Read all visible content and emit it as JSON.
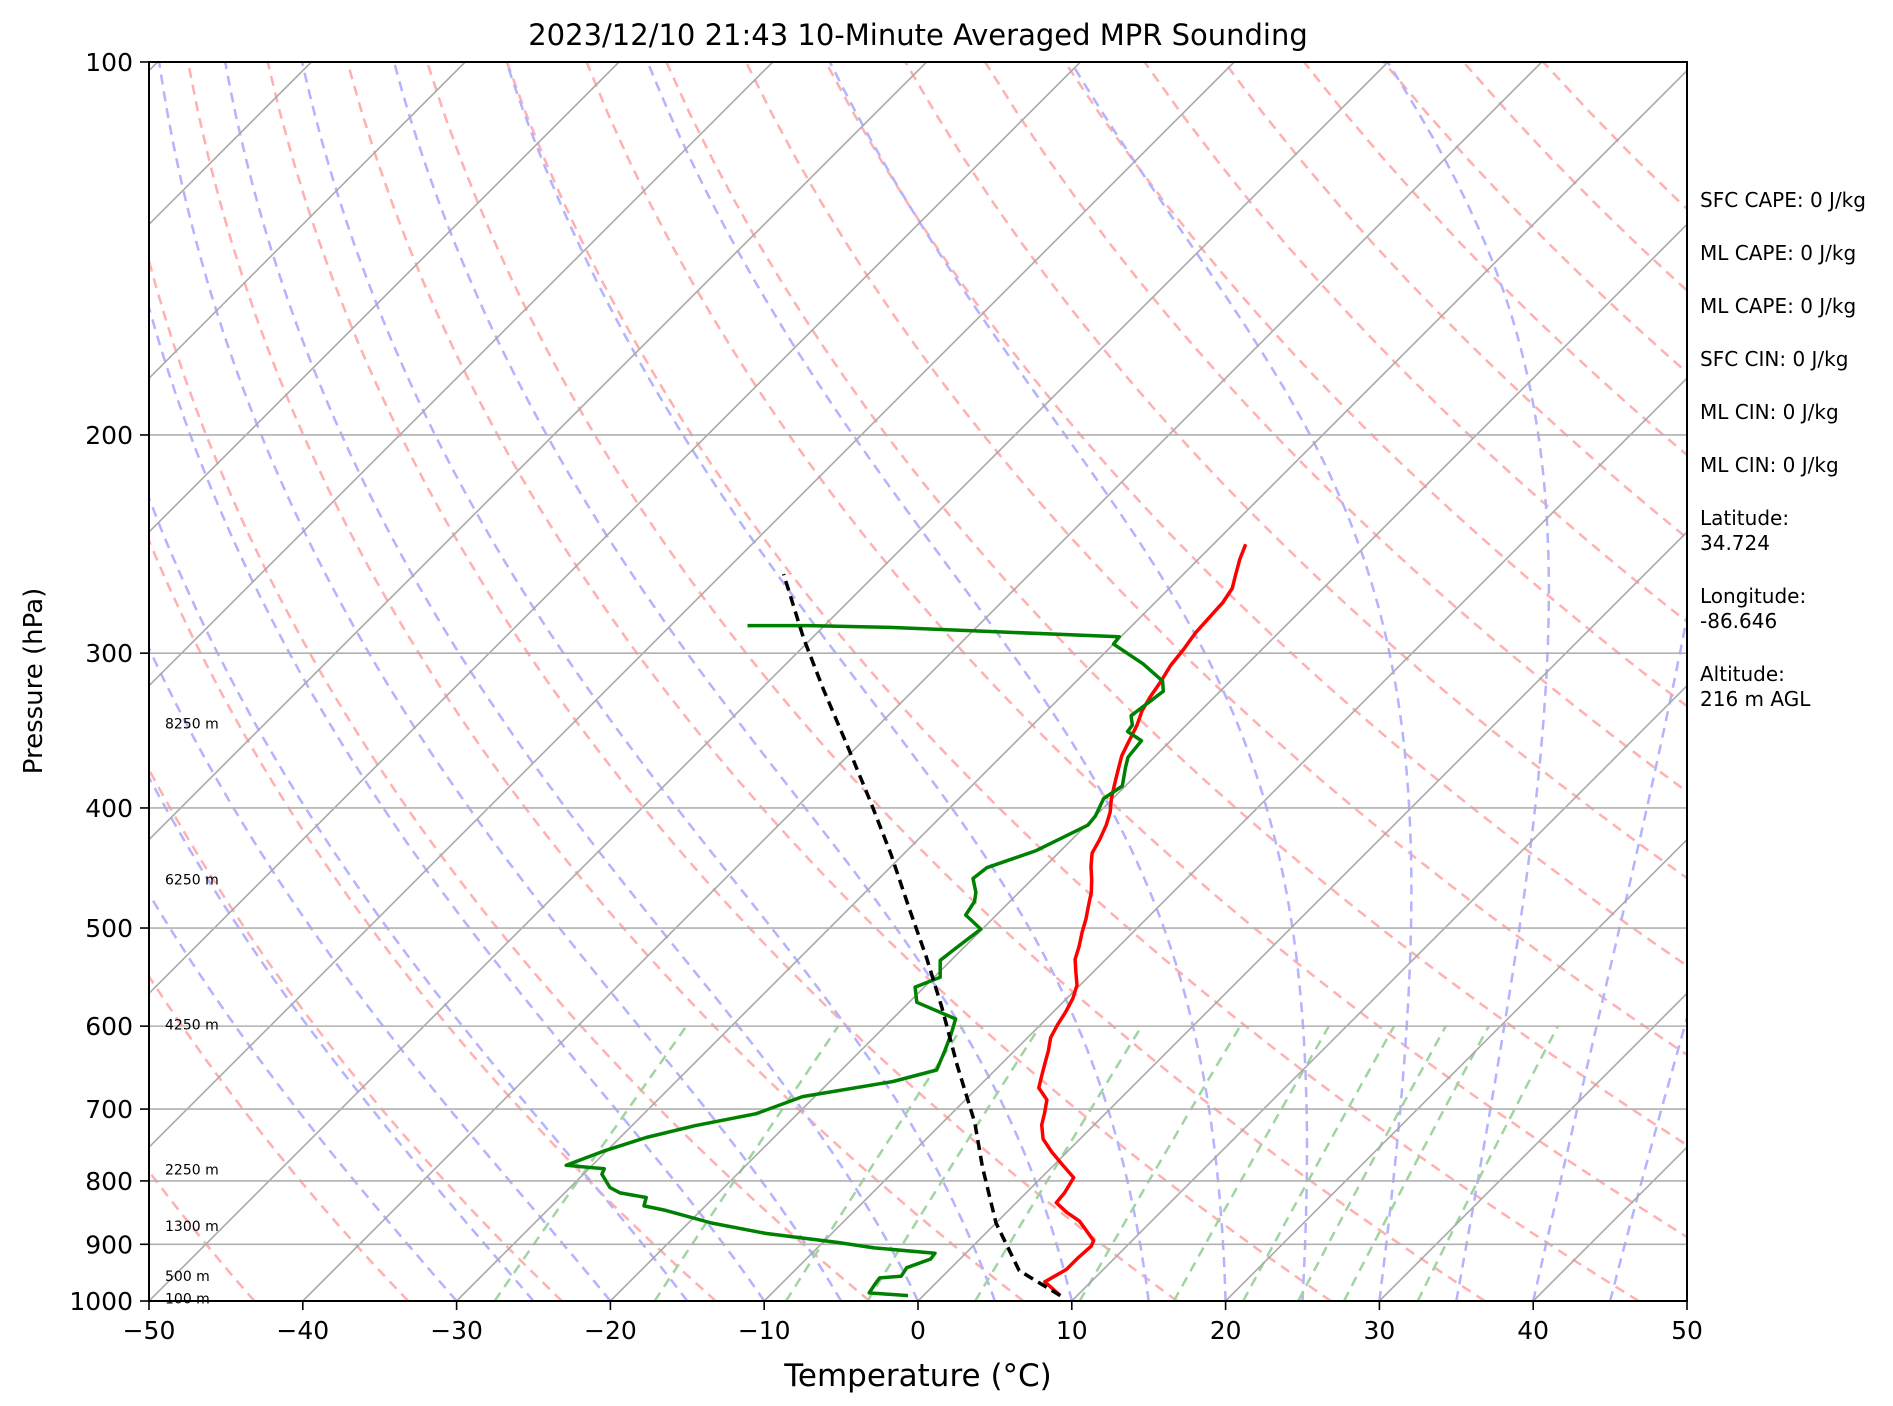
{
  "chart_data": {
    "type": "line",
    "title": "2023/12/10 21:43 10-Minute Averaged MPR Sounding",
    "xlabel": "Temperature (°C)",
    "ylabel": "Pressure (hPa)",
    "xlim": [
      -50,
      50
    ],
    "ylim": [
      1000,
      100
    ],
    "y_scale": "log",
    "x_ticks": [
      -50,
      -40,
      -30,
      -20,
      -10,
      0,
      10,
      20,
      30,
      40,
      50
    ],
    "x_tick_labels": [
      "−50",
      "−40",
      "−30",
      "−20",
      "−10",
      "0",
      "10",
      "20",
      "30",
      "40",
      "50"
    ],
    "y_ticks": [
      1000,
      900,
      800,
      700,
      600,
      500,
      400,
      300,
      200,
      100
    ],
    "y_tick_labels": [
      "1000",
      "900",
      "800",
      "700",
      "600",
      "500",
      "400",
      "300",
      "200",
      "100"
    ],
    "grid": true,
    "series": [
      {
        "kind": "temperature",
        "color": "#ff0000",
        "points": [
          [
            8.9,
            990
          ],
          [
            7.0,
            965
          ],
          [
            7.6,
            943
          ],
          [
            7.6,
            923
          ],
          [
            7.7,
            903
          ],
          [
            7.5,
            894
          ],
          [
            6.0,
            872
          ],
          [
            5.3,
            862
          ],
          [
            3.9,
            848
          ],
          [
            2.6,
            833
          ],
          [
            2.5,
            818
          ],
          [
            2.1,
            795
          ],
          [
            0.5,
            776
          ],
          [
            -1.0,
            758
          ],
          [
            -2.4,
            740
          ],
          [
            -3.4,
            721
          ],
          [
            -4.0,
            705
          ],
          [
            -4.7,
            688
          ],
          [
            -6.0,
            673
          ],
          [
            -6.6,
            658
          ],
          [
            -7.2,
            643
          ],
          [
            -7.8,
            628
          ],
          [
            -8.5,
            613
          ],
          [
            -8.9,
            598
          ],
          [
            -9.2,
            584
          ],
          [
            -9.6,
            570
          ],
          [
            -10.2,
            556
          ],
          [
            -11.1,
            543
          ],
          [
            -12.0,
            530
          ],
          [
            -12.6,
            517
          ],
          [
            -13.3,
            504
          ],
          [
            -13.9,
            492
          ],
          [
            -14.6,
            480
          ],
          [
            -15.3,
            468
          ],
          [
            -16.1,
            457
          ],
          [
            -17.0,
            446
          ],
          [
            -17.8,
            435
          ],
          [
            -18.2,
            424
          ],
          [
            -18.7,
            413
          ],
          [
            -19.3,
            403
          ],
          [
            -20.1,
            393
          ],
          [
            -20.8,
            383
          ],
          [
            -21.5,
            373
          ],
          [
            -22.2,
            363
          ],
          [
            -22.7,
            353
          ],
          [
            -23.2,
            343
          ],
          [
            -23.8,
            334
          ],
          [
            -24.2,
            325
          ],
          [
            -24.5,
            316
          ],
          [
            -24.9,
            307
          ],
          [
            -25.1,
            298
          ],
          [
            -25.4,
            289
          ],
          [
            -25.5,
            281
          ],
          [
            -25.6,
            273
          ],
          [
            -25.9,
            266
          ],
          [
            -26.6,
            259
          ],
          [
            -27.3,
            252
          ],
          [
            -27.9,
            245
          ]
        ]
      },
      {
        "kind": "dewpoint",
        "color": "#008000",
        "points": [
          [
            -1.0,
            990
          ],
          [
            -3.7,
            985
          ],
          [
            -3.9,
            969
          ],
          [
            -4.0,
            958
          ],
          [
            -2.7,
            955
          ],
          [
            -2.9,
            940
          ],
          [
            -1.9,
            925
          ],
          [
            -2.0,
            915
          ],
          [
            -6.3,
            906
          ],
          [
            -9.0,
            897
          ],
          [
            -14.3,
            882
          ],
          [
            -18.5,
            865
          ],
          [
            -22.3,
            845
          ],
          [
            -24.0,
            838
          ],
          [
            -24.4,
            825
          ],
          [
            -26.4,
            818
          ],
          [
            -27.4,
            810
          ],
          [
            -28.8,
            790
          ],
          [
            -29.0,
            782
          ],
          [
            -31.7,
            777
          ],
          [
            -30.2,
            757
          ],
          [
            -28.3,
            738
          ],
          [
            -25.9,
            722
          ],
          [
            -22.7,
            706
          ],
          [
            -20.8,
            684
          ],
          [
            -15.9,
            665
          ],
          [
            -13.8,
            651
          ],
          [
            -14.5,
            629
          ],
          [
            -15.2,
            609
          ],
          [
            -15.9,
            592
          ],
          [
            -19.5,
            574
          ],
          [
            -20.6,
            558
          ],
          [
            -19.6,
            548
          ],
          [
            -20.7,
            531
          ],
          [
            -20.5,
            520
          ],
          [
            -20.1,
            501
          ],
          [
            -22.0,
            488
          ],
          [
            -22.3,
            476
          ],
          [
            -22.8,
            468
          ],
          [
            -23.9,
            456
          ],
          [
            -23.7,
            447
          ],
          [
            -21.6,
            433
          ],
          [
            -19.9,
            413
          ],
          [
            -20.0,
            406
          ],
          [
            -20.6,
            393
          ],
          [
            -20.2,
            384
          ],
          [
            -21.2,
            371
          ],
          [
            -21.7,
            364
          ],
          [
            -21.9,
            353
          ],
          [
            -23.4,
            347
          ],
          [
            -23.5,
            343
          ],
          [
            -24.2,
            337
          ],
          [
            -23.9,
            328
          ],
          [
            -23.7,
            322
          ],
          [
            -24.4,
            316
          ],
          [
            -26.8,
            306
          ],
          [
            -30.0,
            295
          ],
          [
            -30.1,
            291
          ],
          [
            -45.6,
            286
          ],
          [
            -51.0,
            285
          ],
          [
            -55.0,
            285
          ]
        ]
      },
      {
        "kind": "parcel",
        "color": "#000000",
        "points": [
          [
            8.9,
            990
          ],
          [
            4.6,
            945
          ],
          [
            0.0,
            865
          ],
          [
            -4.5,
            780
          ],
          [
            -7.9,
            718
          ],
          [
            -12.8,
            645
          ],
          [
            -17.5,
            580
          ],
          [
            -21.8,
            528
          ],
          [
            -26.3,
            480
          ],
          [
            -30.8,
            436
          ],
          [
            -35.6,
            395
          ],
          [
            -40.6,
            357
          ],
          [
            -45.9,
            321
          ],
          [
            -50.5,
            292
          ],
          [
            -56.0,
            259
          ]
        ]
      }
    ],
    "height_labels": [
      "8250 m",
      "6250 m",
      "4250 m",
      "2250 m",
      "1300 m",
      "500 m",
      "100 m"
    ],
    "height_label_pressures": [
      342,
      457,
      598,
      783,
      870,
      955,
      995
    ],
    "background_lines": {
      "isotherm_color": "#a9a9a9",
      "dry_adiabat_color": "#ffb0b0",
      "moist_adiabat_color": "#b3b3ff",
      "mixing_ratio_color": "#a0d4a0"
    }
  },
  "side_panel": [
    "SFC CAPE: 0 J/kg",
    "ML CAPE: 0 J/kg",
    "ML CAPE: 0 J/kg",
    "SFC CIN: 0 J/kg",
    "ML CIN: 0 J/kg",
    "ML CIN: 0 J/kg",
    "Latitude:\n34.724",
    "Longitude:\n-86.646",
    "Altitude:\n216 m AGL"
  ]
}
